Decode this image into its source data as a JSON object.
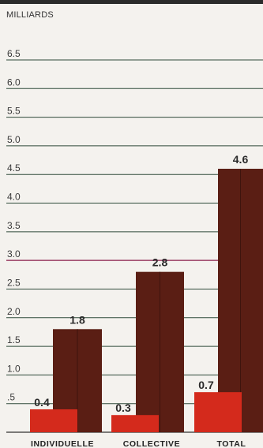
{
  "chart_data": {
    "type": "bar",
    "ylabel": "MILLIARDS",
    "ylim": [
      0,
      6.5
    ],
    "ticks": [
      {
        "value": 0.5,
        "label": ".5"
      },
      {
        "value": 1.0,
        "label": "1.0"
      },
      {
        "value": 1.5,
        "label": "1.5"
      },
      {
        "value": 2.0,
        "label": "2.0"
      },
      {
        "value": 2.5,
        "label": "2.5"
      },
      {
        "value": 3.0,
        "label": "3.0"
      },
      {
        "value": 3.5,
        "label": "3.5"
      },
      {
        "value": 4.0,
        "label": "4.0"
      },
      {
        "value": 4.5,
        "label": "4.5"
      },
      {
        "value": 5.0,
        "label": "5.0"
      },
      {
        "value": 5.5,
        "label": "5.5"
      },
      {
        "value": 6.0,
        "label": "6.0"
      },
      {
        "value": 6.5,
        "label": "6.5"
      }
    ],
    "categories": [
      "INDIVIDUELLE",
      "COLLECTIVE",
      "TOTAL"
    ],
    "series": [
      {
        "values": [
          1.8,
          2.8,
          4.6
        ],
        "labels": [
          "1.8",
          "2.8",
          "4.6"
        ],
        "color": "#5a1e14"
      },
      {
        "values": [
          0.4,
          0.3,
          0.7
        ],
        "labels": [
          "0.4",
          "0.3",
          "0.7"
        ],
        "color": "#d42a1c"
      }
    ],
    "grid": true,
    "highlight_line": {
      "value": 3.0,
      "color": "#8a1c4a"
    }
  }
}
